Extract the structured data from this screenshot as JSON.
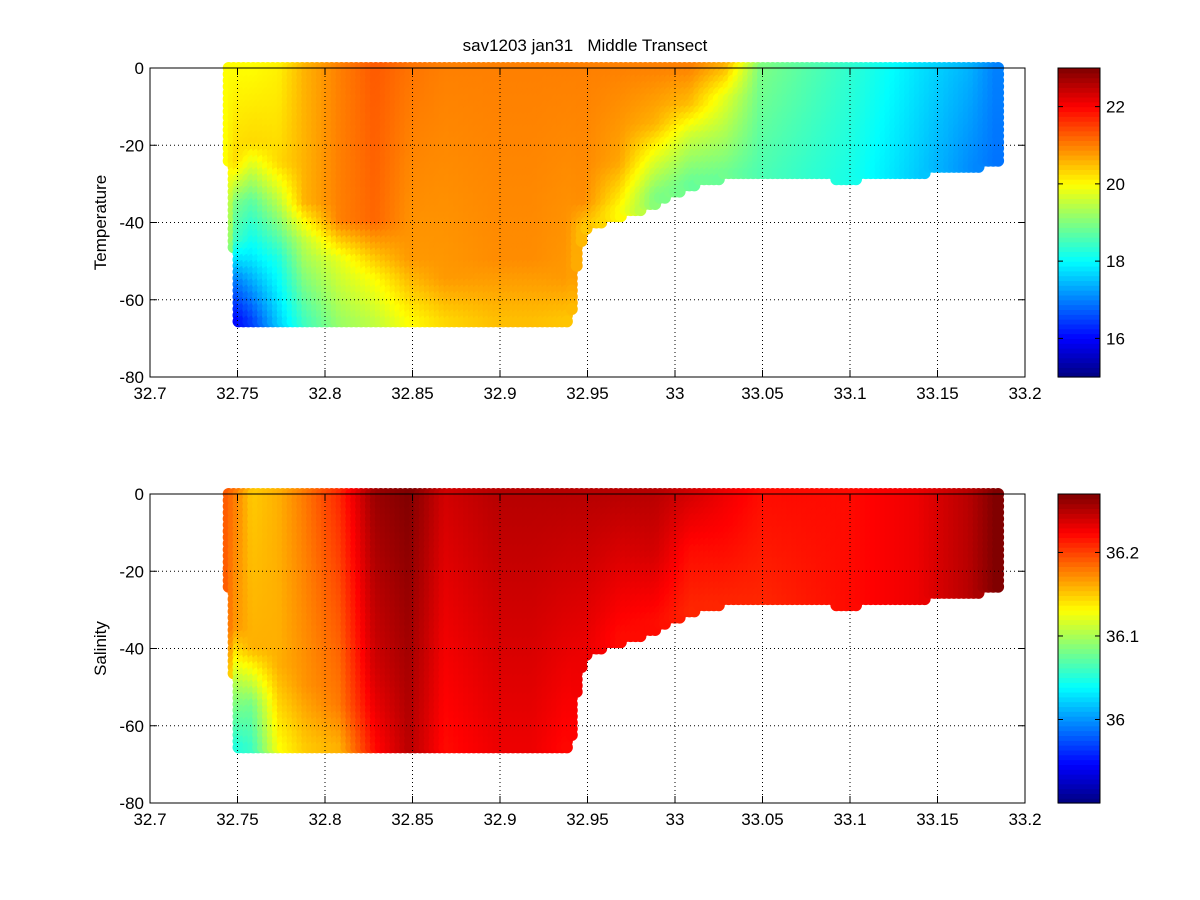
{
  "figure": {
    "title": "sav1203 jan31   Middle Transect"
  },
  "chart_data": [
    {
      "type": "scatter",
      "title": "sav1203 jan31   Middle Transect",
      "xlabel": "",
      "ylabel": "Temperature",
      "xlim": [
        32.7,
        33.2
      ],
      "ylim": [
        -80,
        0
      ],
      "xticks": [
        "32.7",
        "32.75",
        "32.8",
        "32.85",
        "32.9",
        "32.95",
        "33",
        "33.05",
        "33.1",
        "33.15",
        "33.2"
      ],
      "yticks": [
        "0",
        "-20",
        "-40",
        "-60",
        "-80"
      ],
      "grid": true,
      "colormap": "jet",
      "clim": [
        15,
        23
      ],
      "colorbar_ticks": [
        "16",
        "18",
        "20",
        "22"
      ],
      "bottom_depth_profile": {
        "x": [
          32.745,
          32.75,
          32.94,
          32.945,
          32.95,
          32.96,
          32.98,
          33.0,
          33.02,
          33.05,
          33.1,
          33.15,
          33.185
        ],
        "depth": [
          -25,
          -66,
          -67,
          -47,
          -42,
          -40,
          -37,
          -33,
          -29,
          -28,
          -29,
          -27,
          -25
        ]
      },
      "columns": [
        {
          "x": 32.745,
          "max_depth": -25,
          "values": [
            [
              0,
              20.0
            ],
            [
              -25,
              20.0
            ]
          ]
        },
        {
          "x": 32.75,
          "max_depth": -66,
          "values": [
            [
              0,
              20.0
            ],
            [
              -25,
              20.3
            ],
            [
              -35,
              19.0
            ],
            [
              -45,
              18.5
            ],
            [
              -55,
              17.0
            ],
            [
              -66,
              16.0
            ]
          ]
        },
        {
          "x": 32.76,
          "max_depth": -66,
          "values": [
            [
              0,
              20.0
            ],
            [
              -20,
              20.3
            ],
            [
              -35,
              18.7
            ],
            [
              -50,
              17.8
            ],
            [
              -66,
              16.5
            ]
          ]
        },
        {
          "x": 32.775,
          "max_depth": -66,
          "values": [
            [
              0,
              20.1
            ],
            [
              -25,
              20.3
            ],
            [
              -38,
              19.2
            ],
            [
              -50,
              18.2
            ],
            [
              -66,
              17.6
            ]
          ]
        },
        {
          "x": 32.79,
          "max_depth": -66,
          "values": [
            [
              0,
              20.6
            ],
            [
              -35,
              20.6
            ],
            [
              -45,
              19.5
            ],
            [
              -66,
              18.5
            ]
          ]
        },
        {
          "x": 32.81,
          "max_depth": -66,
          "values": [
            [
              0,
              21.0
            ],
            [
              -40,
              21.0
            ],
            [
              -50,
              19.8
            ],
            [
              -66,
              19.2
            ]
          ]
        },
        {
          "x": 32.83,
          "max_depth": -66,
          "values": [
            [
              0,
              21.3
            ],
            [
              -40,
              21.2
            ],
            [
              -55,
              20.0
            ],
            [
              -66,
              19.5
            ]
          ]
        },
        {
          "x": 32.85,
          "max_depth": -66,
          "values": [
            [
              0,
              21.1
            ],
            [
              -50,
              20.8
            ],
            [
              -66,
              20.0
            ]
          ]
        },
        {
          "x": 32.87,
          "max_depth": -66,
          "values": [
            [
              0,
              21.0
            ],
            [
              -55,
              20.8
            ],
            [
              -66,
              20.3
            ]
          ]
        },
        {
          "x": 32.9,
          "max_depth": -66,
          "values": [
            [
              0,
              21.0
            ],
            [
              -50,
              20.9
            ],
            [
              -66,
              20.5
            ]
          ]
        },
        {
          "x": 32.92,
          "max_depth": -66,
          "values": [
            [
              0,
              21.0
            ],
            [
              -50,
              20.9
            ],
            [
              -66,
              20.5
            ]
          ]
        },
        {
          "x": 32.94,
          "max_depth": -67,
          "values": [
            [
              0,
              21.0
            ],
            [
              -55,
              20.8
            ],
            [
              -67,
              20.4
            ]
          ]
        },
        {
          "x": 32.95,
          "max_depth": -42,
          "values": [
            [
              0,
              21.0
            ],
            [
              -35,
              20.9
            ],
            [
              -42,
              20.4
            ]
          ]
        },
        {
          "x": 32.97,
          "max_depth": -37,
          "values": [
            [
              0,
              21.0
            ],
            [
              -25,
              20.7
            ],
            [
              -37,
              20.0
            ]
          ]
        },
        {
          "x": 32.99,
          "max_depth": -33,
          "values": [
            [
              0,
              21.0
            ],
            [
              -15,
              20.6
            ],
            [
              -25,
              19.7
            ],
            [
              -33,
              19.0
            ]
          ]
        },
        {
          "x": 33.01,
          "max_depth": -30,
          "values": [
            [
              0,
              21.0
            ],
            [
              -10,
              20.5
            ],
            [
              -18,
              19.6
            ],
            [
              -30,
              18.8
            ]
          ]
        },
        {
          "x": 33.03,
          "max_depth": -29,
          "values": [
            [
              0,
              20.6
            ],
            [
              -8,
              19.8
            ],
            [
              -29,
              18.8
            ]
          ]
        },
        {
          "x": 33.05,
          "max_depth": -28,
          "values": [
            [
              0,
              19.0
            ],
            [
              -28,
              18.6
            ]
          ]
        },
        {
          "x": 33.1,
          "max_depth": -29,
          "values": [
            [
              0,
              18.4
            ],
            [
              -29,
              18.2
            ]
          ]
        },
        {
          "x": 33.14,
          "max_depth": -27,
          "values": [
            [
              0,
              17.8
            ],
            [
              -27,
              17.6
            ]
          ]
        },
        {
          "x": 33.17,
          "max_depth": -26,
          "values": [
            [
              0,
              17.4
            ],
            [
              -26,
              17.1
            ]
          ]
        },
        {
          "x": 33.185,
          "max_depth": -25,
          "values": [
            [
              0,
              17.0
            ],
            [
              -25,
              16.9
            ]
          ]
        }
      ]
    },
    {
      "type": "scatter",
      "title": "",
      "xlabel": "",
      "ylabel": "Salinity",
      "xlim": [
        32.7,
        33.2
      ],
      "ylim": [
        -80,
        0
      ],
      "xticks": [
        "32.7",
        "32.75",
        "32.8",
        "32.85",
        "32.9",
        "32.95",
        "33",
        "33.05",
        "33.1",
        "33.15",
        "33.2"
      ],
      "yticks": [
        "0",
        "-20",
        "-40",
        "-60",
        "-80"
      ],
      "grid": true,
      "colormap": "jet",
      "clim": [
        35.9,
        36.27
      ],
      "colorbar_ticks": [
        "36",
        "36.1",
        "36.2"
      ],
      "bottom_depth_profile": {
        "x": [
          32.745,
          32.75,
          32.94,
          32.945,
          32.95,
          32.96,
          32.98,
          33.0,
          33.02,
          33.05,
          33.1,
          33.15,
          33.185
        ],
        "depth": [
          -25,
          -66,
          -67,
          -47,
          -42,
          -40,
          -37,
          -33,
          -29,
          -28,
          -29,
          -27,
          -25
        ]
      },
      "columns": [
        {
          "x": 32.745,
          "max_depth": -25,
          "values": [
            [
              0,
              36.19
            ],
            [
              -25,
              36.19
            ]
          ]
        },
        {
          "x": 32.75,
          "max_depth": -66,
          "values": [
            [
              0,
              36.18
            ],
            [
              -35,
              36.17
            ],
            [
              -50,
              36.1
            ],
            [
              -66,
              36.05
            ]
          ]
        },
        {
          "x": 32.76,
          "max_depth": -66,
          "values": [
            [
              0,
              36.15
            ],
            [
              -40,
              36.16
            ],
            [
              -55,
              36.08
            ],
            [
              -66,
              36.06
            ]
          ]
        },
        {
          "x": 32.775,
          "max_depth": -66,
          "values": [
            [
              0,
              36.16
            ],
            [
              -45,
              36.16
            ],
            [
              -66,
              36.13
            ]
          ]
        },
        {
          "x": 32.79,
          "max_depth": -66,
          "values": [
            [
              0,
              36.18
            ],
            [
              -50,
              36.17
            ],
            [
              -66,
              36.15
            ]
          ]
        },
        {
          "x": 32.81,
          "max_depth": -66,
          "values": [
            [
              0,
              36.21
            ],
            [
              -55,
              36.18
            ],
            [
              -66,
              36.16
            ]
          ]
        },
        {
          "x": 32.83,
          "max_depth": -66,
          "values": [
            [
              0,
              36.26
            ],
            [
              -45,
              36.24
            ],
            [
              -66,
              36.22
            ]
          ]
        },
        {
          "x": 32.85,
          "max_depth": -66,
          "values": [
            [
              0,
              36.27
            ],
            [
              -66,
              36.25
            ]
          ]
        },
        {
          "x": 32.87,
          "max_depth": -66,
          "values": [
            [
              0,
              36.24
            ],
            [
              -66,
              36.22
            ]
          ]
        },
        {
          "x": 32.9,
          "max_depth": -66,
          "values": [
            [
              0,
              36.25
            ],
            [
              -66,
              36.23
            ]
          ]
        },
        {
          "x": 32.92,
          "max_depth": -66,
          "values": [
            [
              0,
              36.25
            ],
            [
              -66,
              36.23
            ]
          ]
        },
        {
          "x": 32.94,
          "max_depth": -67,
          "values": [
            [
              0,
              36.25
            ],
            [
              -67,
              36.22
            ]
          ]
        },
        {
          "x": 32.95,
          "max_depth": -42,
          "values": [
            [
              0,
              36.25
            ],
            [
              -42,
              36.23
            ]
          ]
        },
        {
          "x": 32.97,
          "max_depth": -37,
          "values": [
            [
              0,
              36.25
            ],
            [
              -37,
              36.22
            ]
          ]
        },
        {
          "x": 32.99,
          "max_depth": -33,
          "values": [
            [
              0,
              36.25
            ],
            [
              -15,
              36.24
            ],
            [
              -33,
              36.22
            ]
          ]
        },
        {
          "x": 33.01,
          "max_depth": -30,
          "values": [
            [
              0,
              36.24
            ],
            [
              -15,
              36.22
            ],
            [
              -30,
              36.21
            ]
          ]
        },
        {
          "x": 33.03,
          "max_depth": -29,
          "values": [
            [
              0,
              36.23
            ],
            [
              -29,
              36.21
            ]
          ]
        },
        {
          "x": 33.05,
          "max_depth": -28,
          "values": [
            [
              0,
              36.22
            ],
            [
              -28,
              36.21
            ]
          ]
        },
        {
          "x": 33.1,
          "max_depth": -29,
          "values": [
            [
              0,
              36.22
            ],
            [
              -29,
              36.22
            ]
          ]
        },
        {
          "x": 33.14,
          "max_depth": -27,
          "values": [
            [
              0,
              36.23
            ],
            [
              -27,
              36.23
            ]
          ]
        },
        {
          "x": 33.17,
          "max_depth": -26,
          "values": [
            [
              0,
              36.25
            ],
            [
              -26,
              36.25
            ]
          ]
        },
        {
          "x": 33.185,
          "max_depth": -25,
          "values": [
            [
              0,
              36.27
            ],
            [
              -25,
              36.27
            ]
          ]
        }
      ]
    }
  ]
}
